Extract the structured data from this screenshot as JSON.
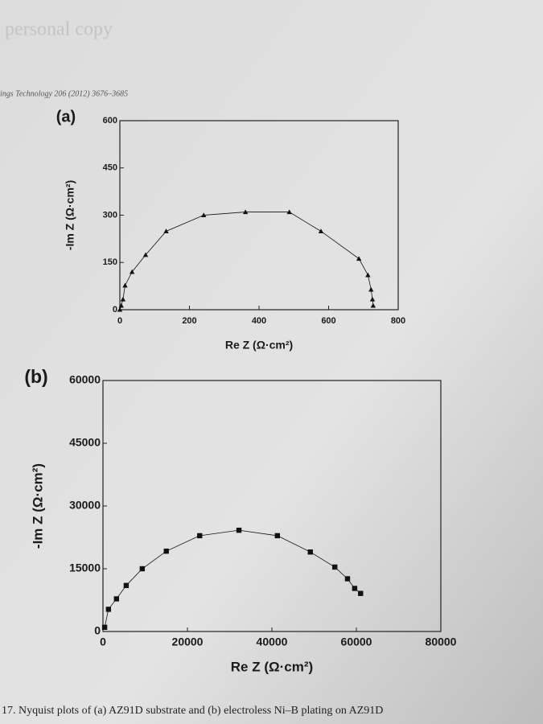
{
  "page": {
    "watermark": "personal copy",
    "running_head": "ings Technology 206 (2012) 3676–3685",
    "caption": "17. Nyquist plots of (a) AZ91D substrate and (b) electroless Ni–B plating on AZ91D"
  },
  "chart_data": [
    {
      "type": "line",
      "panel_label": "(a)",
      "x_label": "Re Z (Ω·cm²)",
      "y_label": "-Im Z (Ω·cm²)",
      "marker": "triangle",
      "color": "#111111",
      "xlim": [
        0,
        800
      ],
      "xticks": [
        0,
        200,
        400,
        600,
        800
      ],
      "ylim": [
        0,
        600
      ],
      "yticks": [
        0,
        150,
        300,
        450,
        600
      ],
      "series": [
        {
          "x": [
            0,
            4,
            9,
            15,
            35,
            74,
            133,
            241,
            361,
            487,
            578,
            687,
            713,
            722,
            726,
            728
          ],
          "values": [
            0,
            13,
            33,
            77,
            120,
            174,
            249,
            300,
            310,
            310,
            249,
            162,
            110,
            64,
            33,
            13
          ]
        }
      ]
    },
    {
      "type": "line",
      "panel_label": "(b)",
      "x_label": "Re Z (Ω·cm²)",
      "y_label": "-Im Z (Ω·cm²)",
      "marker": "square",
      "color": "#111111",
      "xlim": [
        0,
        80000
      ],
      "xticks": [
        0,
        20000,
        40000,
        60000,
        80000
      ],
      "ylim": [
        0,
        60000
      ],
      "yticks": [
        0,
        15000,
        30000,
        45000,
        60000
      ],
      "series": [
        {
          "x": [
            400,
            1300,
            3200,
            5500,
            9300,
            15000,
            22900,
            32200,
            41300,
            49100,
            54900,
            57900,
            59600,
            61000
          ],
          "values": [
            1000,
            5300,
            7800,
            11000,
            15000,
            19200,
            22900,
            24200,
            22900,
            19000,
            15400,
            12600,
            10300,
            9100
          ]
        }
      ]
    }
  ]
}
